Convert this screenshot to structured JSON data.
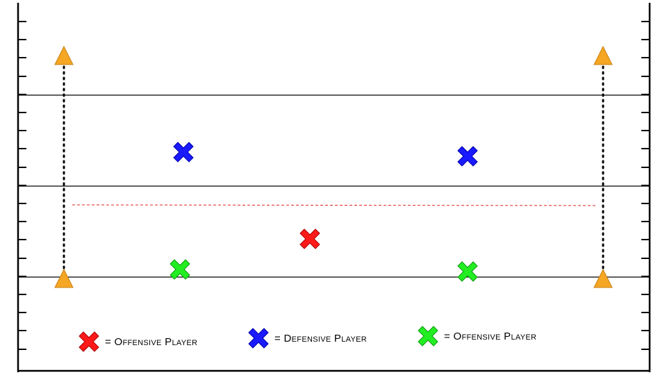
{
  "colors": {
    "offense_red": "#ff1a1a",
    "defense_blue": "#1a1aff",
    "offense_green": "#22ee22",
    "cone": "#f5a623",
    "line_of_scrimmage": "#e02020",
    "lines": "#000000"
  },
  "icons": {
    "player": "x-mark-icon",
    "cone": "cone-triangle-icon"
  },
  "legend": [
    {
      "label": "= Offensive Player",
      "color": "#ff1a1a"
    },
    {
      "label": "= Defensive Player",
      "color": "#1a1aff"
    },
    {
      "label": "= Offensive Player",
      "color": "#22ee22"
    }
  ]
}
